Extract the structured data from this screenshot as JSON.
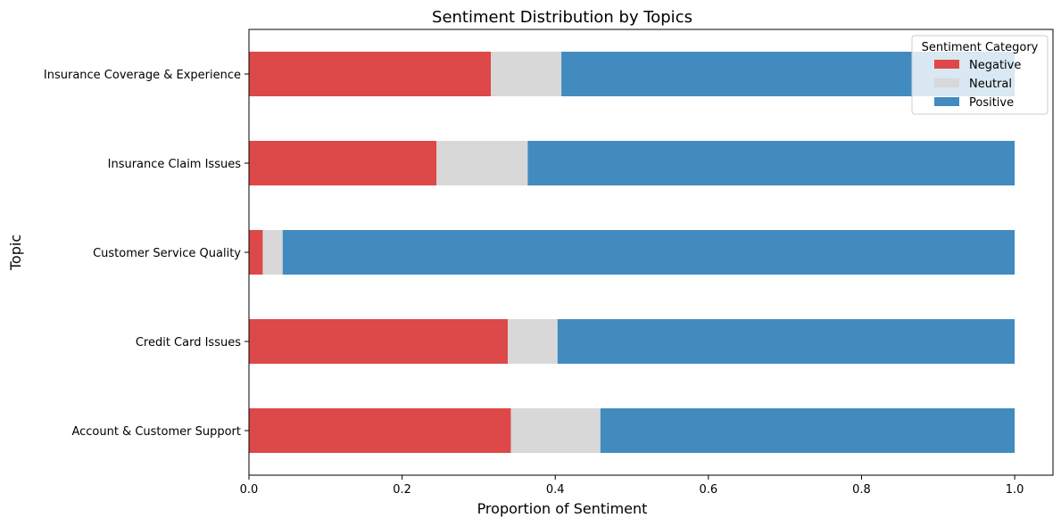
{
  "chart_data": {
    "type": "bar",
    "orientation": "horizontal",
    "stacked": true,
    "title": "Sentiment Distribution by Topics",
    "xlabel": "Proportion of Sentiment",
    "ylabel": "Topic",
    "xlim": [
      0,
      1.05
    ],
    "xticks": [
      0.0,
      0.2,
      0.4,
      0.6,
      0.8,
      1.0
    ],
    "xtick_labels": [
      "0.0",
      "0.2",
      "0.4",
      "0.6",
      "0.8",
      "1.0"
    ],
    "grid": false,
    "categories": [
      "Insurance Coverage & Experience",
      "Insurance Claim Issues",
      "Customer Service Quality",
      "Credit Card Issues",
      "Account & Customer Support"
    ],
    "series": [
      {
        "name": "Negative",
        "color": "#dd4848",
        "values": [
          0.316,
          0.245,
          0.018,
          0.338,
          0.342
        ]
      },
      {
        "name": "Neutral",
        "color": "#d8d8d8",
        "values": [
          0.092,
          0.119,
          0.026,
          0.065,
          0.117
        ]
      },
      {
        "name": "Positive",
        "color": "#428bbf",
        "values": [
          0.592,
          0.636,
          0.956,
          0.597,
          0.541
        ]
      }
    ],
    "legend": {
      "title": "Sentiment Category",
      "position": "top-right"
    }
  }
}
